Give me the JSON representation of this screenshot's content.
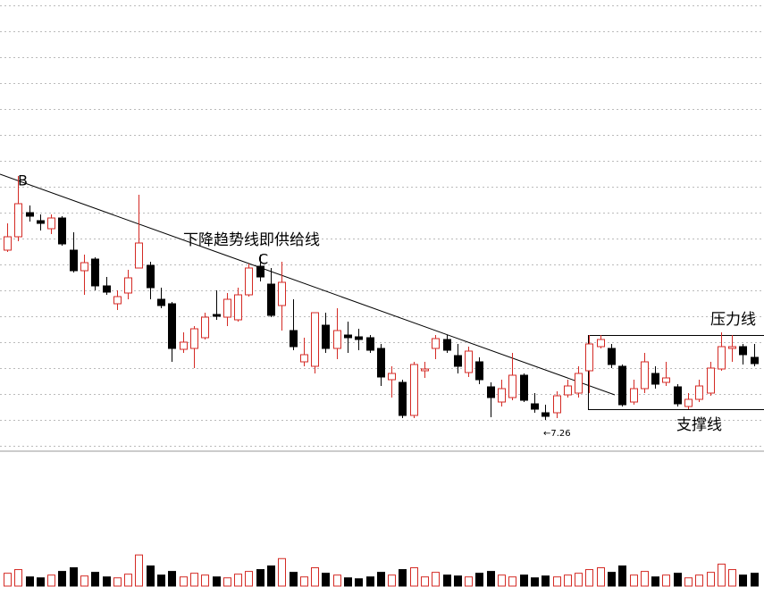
{
  "chart_data": {
    "type": "candlestick",
    "up_color": "#d42a24",
    "down_color": "#000000",
    "ylim": [
      6.91,
      11.96
    ],
    "open": [
      9.16,
      9.31,
      9.58,
      9.49,
      9.4,
      9.52,
      9.16,
      8.93,
      9.06,
      8.76,
      8.56,
      8.68,
      8.96,
      8.99,
      8.61,
      8.56,
      8.05,
      8.06,
      8.18,
      8.44,
      8.41,
      8.38,
      8.66,
      8.98,
      8.78,
      8.54,
      8.26,
      7.91,
      7.86,
      8.32,
      8.06,
      8.21,
      8.19,
      8.18,
      8.06,
      7.71,
      7.68,
      7.31,
      7.81,
      8.06,
      8.16,
      7.98,
      7.79,
      7.91,
      7.63,
      7.46,
      7.51,
      7.76,
      7.44,
      7.34,
      7.34,
      7.54,
      7.56,
      7.81,
      8.08,
      8.06,
      7.86,
      7.46,
      7.61,
      7.78,
      7.68,
      7.63,
      7.41,
      7.49,
      7.56,
      7.83,
      8.06,
      8.08,
      7.96
    ],
    "high": [
      9.46,
      9.99,
      9.66,
      9.56,
      9.56,
      9.54,
      9.36,
      9.11,
      9.08,
      8.86,
      8.71,
      8.94,
      9.78,
      9.03,
      8.74,
      8.58,
      8.24,
      8.31,
      8.46,
      8.71,
      8.68,
      8.74,
      9.01,
      9.11,
      8.96,
      9.03,
      8.61,
      8.18,
      8.46,
      8.46,
      8.51,
      8.36,
      8.28,
      8.21,
      8.11,
      7.86,
      7.71,
      7.91,
      7.91,
      8.21,
      8.21,
      8.11,
      8.08,
      7.96,
      7.68,
      7.71,
      8.01,
      7.78,
      7.56,
      7.43,
      7.58,
      7.71,
      7.86,
      8.21,
      8.21,
      8.11,
      7.88,
      7.71,
      8.01,
      7.86,
      7.91,
      7.66,
      7.56,
      7.71,
      7.91,
      8.24,
      8.21,
      8.11,
      8.11
    ],
    "low": [
      9.14,
      9.26,
      9.48,
      9.38,
      9.34,
      9.21,
      8.91,
      8.66,
      8.71,
      8.66,
      8.49,
      8.61,
      8.96,
      8.61,
      8.51,
      7.91,
      8.01,
      7.84,
      8.16,
      8.38,
      8.31,
      8.36,
      8.64,
      8.81,
      8.41,
      8.26,
      8.04,
      7.86,
      7.78,
      8.01,
      7.94,
      8.01,
      8.04,
      8.01,
      7.64,
      7.51,
      7.28,
      7.28,
      7.73,
      7.94,
      8.01,
      7.78,
      7.74,
      7.66,
      7.29,
      7.41,
      7.48,
      7.46,
      7.34,
      7.26,
      7.28,
      7.51,
      7.51,
      7.56,
      8.06,
      7.84,
      7.41,
      7.43,
      7.56,
      7.61,
      7.64,
      7.41,
      7.38,
      7.46,
      7.53,
      7.81,
      7.91,
      7.88,
      7.86
    ],
    "close": [
      9.31,
      9.68,
      9.54,
      9.46,
      9.52,
      9.23,
      8.93,
      9.02,
      8.76,
      8.69,
      8.64,
      8.85,
      9.24,
      8.74,
      8.54,
      8.06,
      8.13,
      8.28,
      8.41,
      8.42,
      8.61,
      8.66,
      8.96,
      8.86,
      8.43,
      8.8,
      8.08,
      7.99,
      8.46,
      8.06,
      8.26,
      8.18,
      8.16,
      8.04,
      7.74,
      7.78,
      7.31,
      7.88,
      7.83,
      8.17,
      8.04,
      7.86,
      8.03,
      7.71,
      7.51,
      7.61,
      7.76,
      7.48,
      7.38,
      7.3,
      7.53,
      7.64,
      7.78,
      8.11,
      8.16,
      7.88,
      7.43,
      7.61,
      7.91,
      7.66,
      7.73,
      7.44,
      7.49,
      7.64,
      7.84,
      8.08,
      8.08,
      7.99,
      7.89
    ],
    "volume": [
      14,
      18,
      10,
      9,
      12,
      16,
      20,
      11,
      15,
      10,
      9,
      13,
      34,
      22,
      12,
      16,
      10,
      14,
      12,
      10,
      9,
      13,
      16,
      18,
      22,
      30,
      15,
      10,
      20,
      14,
      12,
      9,
      8,
      10,
      15,
      12,
      18,
      20,
      10,
      15,
      12,
      11,
      10,
      14,
      16,
      12,
      10,
      12,
      9,
      11,
      10,
      12,
      14,
      18,
      20,
      15,
      22,
      12,
      16,
      10,
      12,
      14,
      9,
      12,
      15,
      24,
      18,
      12,
      14
    ],
    "vlim": [
      0,
      40
    ],
    "annotations": [
      "B",
      "C",
      "下降趋势线即供给线",
      "压力线",
      "支撑线",
      "←7.26"
    ]
  }
}
